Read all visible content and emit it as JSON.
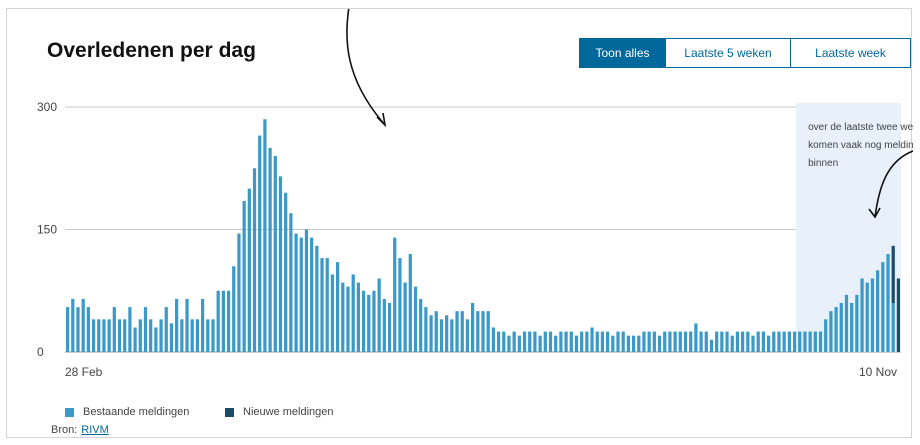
{
  "colors": {
    "existing": "#3a99c6",
    "new": "#1b4b66",
    "accent": "#01689b",
    "shade": "#e8f1fa",
    "grid": "#c8c8c8"
  },
  "tabs": [
    {
      "label": "Toon alles",
      "active": true
    },
    {
      "label": "Laatste 5 weken",
      "active": false
    },
    {
      "label": "Laatste week",
      "active": false
    }
  ],
  "legend": [
    {
      "label": "Bestaande meldingen",
      "color": "#3a99c6"
    },
    {
      "label": "Nieuwe meldingen",
      "color": "#1b4b66"
    }
  ],
  "source": {
    "label": "Bron:",
    "link": "RIVM"
  },
  "chart_data": {
    "type": "bar",
    "title": "Overledenen per dag",
    "y_ticks": [
      "300",
      "150",
      "0"
    ],
    "ylim": [
      0,
      300
    ],
    "x_tick_labels": {
      "start": "28 Feb",
      "end": "10 Nov"
    },
    "shaded_note": {
      "lines": [
        "over de laatste twee weken",
        "komen vaak nog meldingen",
        "binnen"
      ],
      "last_bars": 20
    },
    "grid": true,
    "series": [
      {
        "name": "Bestaande meldingen",
        "values": [
          55,
          65,
          55,
          65,
          55,
          40,
          40,
          40,
          40,
          55,
          40,
          40,
          55,
          30,
          40,
          55,
          40,
          30,
          40,
          55,
          35,
          65,
          40,
          65,
          40,
          40,
          65,
          40,
          40,
          75,
          75,
          75,
          105,
          145,
          185,
          200,
          225,
          265,
          285,
          250,
          240,
          215,
          195,
          170,
          145,
          140,
          150,
          140,
          130,
          115,
          115,
          95,
          110,
          85,
          80,
          95,
          85,
          75,
          70,
          75,
          90,
          65,
          60,
          140,
          115,
          85,
          120,
          80,
          65,
          55,
          45,
          50,
          40,
          45,
          40,
          50,
          50,
          40,
          60,
          50,
          50,
          50,
          30,
          25,
          25,
          20,
          25,
          20,
          25,
          25,
          25,
          20,
          25,
          25,
          20,
          25,
          25,
          25,
          20,
          25,
          25,
          30,
          25,
          25,
          25,
          20,
          25,
          25,
          20,
          20,
          20,
          25,
          25,
          25,
          20,
          25,
          25,
          25,
          25,
          25,
          25,
          35,
          25,
          25,
          15,
          25,
          25,
          25,
          20,
          25,
          25,
          25,
          20,
          25,
          25,
          20,
          25,
          25,
          25,
          25,
          25,
          25,
          25,
          25,
          25,
          25,
          40,
          50,
          55,
          60,
          70,
          60,
          70,
          90,
          85,
          90,
          100,
          110,
          120,
          60,
          0
        ],
        "color": "#3a99c6"
      },
      {
        "name": "Nieuwe meldingen",
        "values": [
          0,
          0,
          0,
          0,
          0,
          0,
          0,
          0,
          0,
          0,
          0,
          0,
          0,
          0,
          0,
          0,
          0,
          0,
          0,
          0,
          0,
          0,
          0,
          0,
          0,
          0,
          0,
          0,
          0,
          0,
          0,
          0,
          0,
          0,
          0,
          0,
          0,
          0,
          0,
          0,
          0,
          0,
          0,
          0,
          0,
          0,
          0,
          0,
          0,
          0,
          0,
          0,
          0,
          0,
          0,
          0,
          0,
          0,
          0,
          0,
          0,
          0,
          0,
          0,
          0,
          0,
          0,
          0,
          0,
          0,
          0,
          0,
          0,
          0,
          0,
          0,
          0,
          0,
          0,
          0,
          0,
          0,
          0,
          0,
          0,
          0,
          0,
          0,
          0,
          0,
          0,
          0,
          0,
          0,
          0,
          0,
          0,
          0,
          0,
          0,
          0,
          0,
          0,
          0,
          0,
          0,
          0,
          0,
          0,
          0,
          0,
          0,
          0,
          0,
          0,
          0,
          0,
          0,
          0,
          0,
          0,
          0,
          0,
          0,
          0,
          0,
          0,
          0,
          0,
          0,
          0,
          0,
          0,
          0,
          0,
          0,
          0,
          0,
          0,
          0,
          0,
          0,
          0,
          0,
          0,
          0,
          0,
          0,
          0,
          0,
          0,
          0,
          0,
          0,
          0,
          0,
          0,
          0,
          0,
          70,
          90
        ],
        "color": "#1b4b66"
      }
    ]
  }
}
